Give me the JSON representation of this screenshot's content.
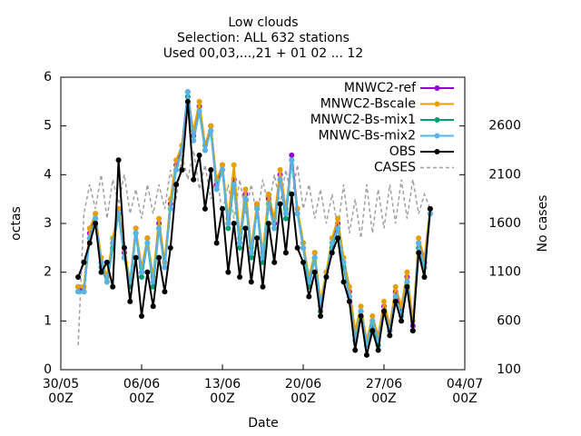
{
  "chart_data": {
    "type": "line",
    "title": "Low clouds",
    "subtitle": "Selection: ALL     632 stations",
    "subtitle2": "Used 00,03,...,21 + 01 02 ... 12",
    "x_label": "Date",
    "y_label": "octas",
    "y2_label": "No cases",
    "x": [
      "31/05 12Z",
      "01/06 00Z",
      "01/06 12Z",
      "02/06 00Z",
      "02/06 12Z",
      "03/06 00Z",
      "03/06 12Z",
      "04/06 00Z",
      "04/06 12Z",
      "05/06 00Z",
      "05/06 12Z",
      "06/06 00Z",
      "06/06 12Z",
      "07/06 00Z",
      "07/06 12Z",
      "08/06 00Z",
      "08/06 12Z",
      "09/06 00Z",
      "09/06 12Z",
      "10/06 00Z",
      "10/06 12Z",
      "11/06 00Z",
      "11/06 12Z",
      "12/06 00Z",
      "12/06 12Z",
      "13/06 00Z",
      "13/06 12Z",
      "14/06 00Z",
      "14/06 12Z",
      "15/06 00Z",
      "15/06 12Z",
      "16/06 00Z",
      "16/06 12Z",
      "17/06 00Z",
      "17/06 12Z",
      "18/06 00Z",
      "18/06 12Z",
      "19/06 00Z",
      "19/06 12Z",
      "20/06 00Z",
      "20/06 12Z",
      "21/06 00Z",
      "21/06 12Z",
      "22/06 00Z",
      "22/06 12Z",
      "23/06 00Z",
      "23/06 12Z",
      "24/06 00Z",
      "24/06 12Z",
      "25/06 00Z",
      "25/06 12Z",
      "26/06 00Z",
      "26/06 12Z",
      "27/06 00Z",
      "27/06 12Z",
      "28/06 00Z",
      "28/06 12Z",
      "29/06 00Z",
      "29/06 12Z",
      "30/06 00Z",
      "30/06 12Z",
      "01/07 00Z"
    ],
    "xlim": [
      "30/05 00Z",
      "04/07 00Z"
    ],
    "xticks": [
      "30/05 00Z",
      "06/06 00Z",
      "13/06 00Z",
      "20/06 00Z",
      "27/06 00Z",
      "04/07 00Z"
    ],
    "ylim": [
      0,
      6
    ],
    "yticks": [
      0,
      1,
      2,
      3,
      4,
      5,
      6
    ],
    "y2lim": [
      100,
      3100
    ],
    "y2ticks": [
      100,
      600,
      1100,
      1600,
      2100,
      2600
    ],
    "series": [
      {
        "name": "MNWC2-ref",
        "color": "#9400d3",
        "values": [
          1.7,
          1.6,
          2.8,
          3.2,
          2.2,
          1.9,
          2.6,
          3.3,
          2.4,
          1.8,
          2.9,
          2.0,
          2.7,
          1.8,
          3.0,
          2.2,
          3.4,
          4.2,
          4.6,
          5.7,
          4.8,
          5.4,
          4.6,
          5.0,
          3.8,
          4.2,
          3.0,
          3.9,
          2.6,
          3.6,
          2.4,
          3.4,
          2.3,
          3.5,
          3.0,
          4.0,
          3.2,
          4.4,
          3.3,
          2.6,
          1.8,
          2.4,
          1.3,
          2.0,
          2.6,
          3.0,
          2.2,
          1.6,
          0.7,
          1.2,
          0.5,
          1.0,
          0.6,
          1.3,
          0.8,
          1.6,
          1.2,
          1.9,
          0.9,
          2.6,
          2.2,
          3.3
        ]
      },
      {
        "name": "MNWC2-Bscale",
        "color": "#e69f00",
        "values": [
          1.7,
          1.7,
          2.9,
          3.2,
          2.3,
          1.9,
          2.7,
          3.3,
          2.5,
          1.8,
          2.9,
          2.1,
          2.7,
          1.9,
          3.1,
          2.2,
          3.5,
          4.3,
          4.6,
          5.6,
          4.9,
          5.5,
          4.6,
          5.0,
          3.9,
          4.2,
          3.1,
          4.2,
          2.7,
          3.7,
          2.5,
          3.4,
          2.4,
          3.6,
          3.1,
          4.1,
          3.3,
          4.3,
          3.3,
          2.6,
          1.9,
          2.4,
          1.4,
          2.0,
          2.7,
          3.1,
          2.3,
          1.7,
          0.8,
          1.3,
          0.6,
          1.1,
          0.7,
          1.4,
          0.9,
          1.7,
          1.3,
          2.0,
          1.0,
          2.7,
          2.3,
          3.3
        ]
      },
      {
        "name": "MNWC2-Bs-mix1",
        "color": "#009e73",
        "values": [
          1.6,
          1.6,
          2.7,
          3.1,
          2.1,
          1.8,
          2.5,
          3.2,
          2.3,
          1.7,
          2.8,
          1.9,
          2.6,
          1.7,
          2.9,
          2.1,
          3.3,
          4.1,
          4.5,
          5.6,
          4.7,
          5.3,
          4.5,
          4.9,
          3.7,
          4.1,
          2.9,
          3.8,
          2.5,
          3.5,
          2.3,
          3.3,
          2.2,
          3.4,
          2.9,
          3.9,
          3.1,
          4.3,
          3.2,
          2.5,
          1.7,
          2.3,
          1.2,
          1.9,
          2.5,
          2.9,
          2.1,
          1.5,
          0.6,
          1.1,
          0.5,
          0.9,
          0.5,
          1.2,
          0.8,
          1.5,
          1.1,
          1.8,
          0.8,
          2.5,
          2.1,
          3.2
        ]
      },
      {
        "name": "MNWC-Bs-mix2",
        "color": "#56b4e9",
        "values": [
          1.6,
          1.6,
          2.7,
          3.1,
          2.2,
          1.8,
          2.6,
          3.2,
          2.3,
          1.8,
          2.8,
          2.0,
          2.6,
          1.8,
          2.9,
          2.1,
          3.3,
          4.1,
          4.5,
          5.7,
          4.7,
          5.3,
          4.5,
          4.9,
          3.7,
          4.1,
          3.0,
          3.8,
          2.6,
          3.5,
          2.4,
          3.3,
          2.3,
          3.4,
          2.9,
          3.9,
          3.2,
          4.3,
          3.2,
          2.5,
          1.8,
          2.3,
          1.3,
          1.9,
          2.6,
          2.9,
          2.2,
          1.5,
          0.6,
          1.2,
          0.5,
          1.0,
          0.6,
          1.2,
          0.8,
          1.5,
          1.1,
          1.8,
          0.8,
          2.6,
          2.1,
          3.2
        ]
      },
      {
        "name": "OBS",
        "color": "#000000",
        "values": [
          1.9,
          2.2,
          2.6,
          3.0,
          2.0,
          2.2,
          1.7,
          4.3,
          2.5,
          1.4,
          2.3,
          1.1,
          2.0,
          1.3,
          2.3,
          1.6,
          2.5,
          3.8,
          4.1,
          5.5,
          3.9,
          4.4,
          3.3,
          4.1,
          2.6,
          3.3,
          2.0,
          3.0,
          1.9,
          2.9,
          1.8,
          2.7,
          1.7,
          3.0,
          2.2,
          3.4,
          2.4,
          3.6,
          2.5,
          2.2,
          1.5,
          2.0,
          1.1,
          1.9,
          2.4,
          2.7,
          1.8,
          1.4,
          0.4,
          1.1,
          0.3,
          0.8,
          0.4,
          1.2,
          0.7,
          1.4,
          1.0,
          1.7,
          0.8,
          2.4,
          1.9,
          3.3
        ]
      },
      {
        "name": "CASES",
        "color": "#a0a0a0",
        "axis": "y2",
        "values": [
          350,
          1700,
          2000,
          1750,
          2100,
          1650,
          2050,
          1800,
          2100,
          1700,
          1950,
          1650,
          2000,
          1700,
          2000,
          1750,
          2150,
          1850,
          2300,
          2050,
          2350,
          1950,
          2200,
          1850,
          2100,
          1700,
          2000,
          1650,
          2050,
          1700,
          2000,
          1650,
          2050,
          1750,
          2100,
          1800,
          2150,
          1850,
          2200,
          1750,
          2000,
          1650,
          1950,
          1600,
          1900,
          1550,
          2000,
          1500,
          1850,
          1450,
          2000,
          1500,
          1950,
          1550,
          2000,
          1600,
          2050,
          1650,
          2050,
          1700,
          1900,
          1750
        ]
      }
    ]
  }
}
